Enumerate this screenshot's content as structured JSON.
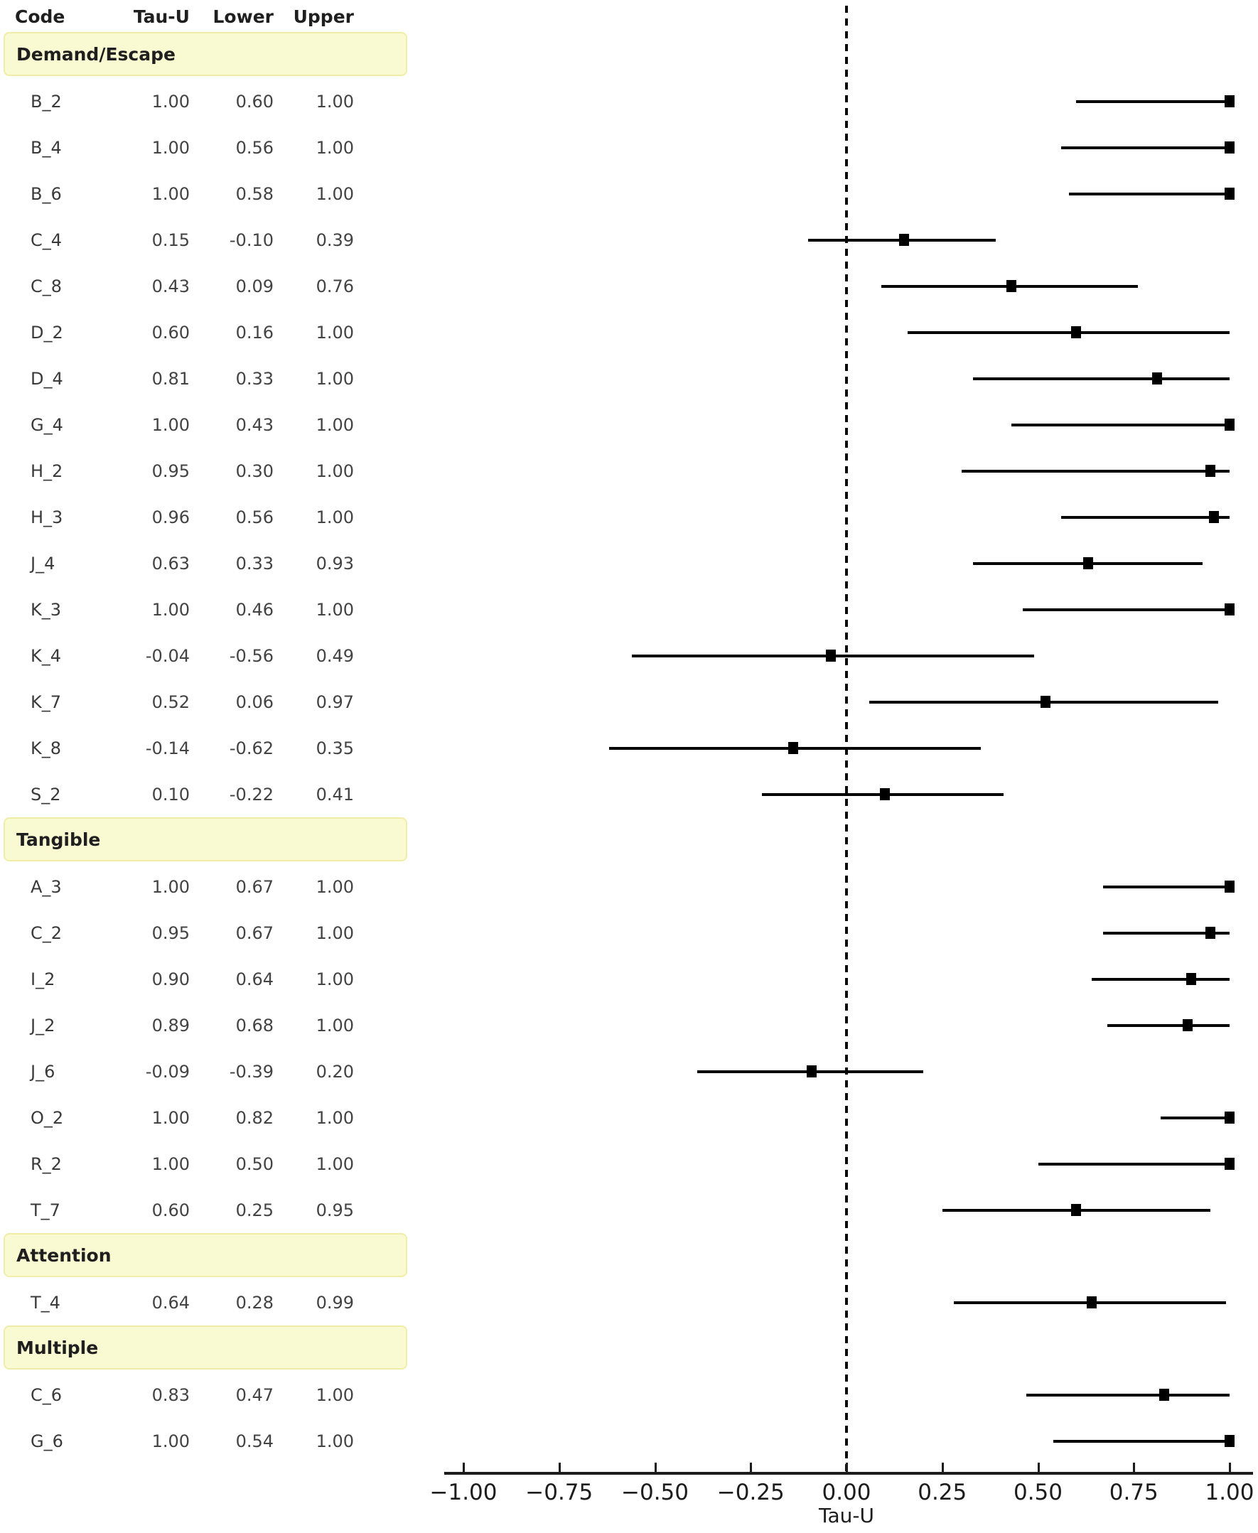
{
  "table": {
    "columns": [
      "Code",
      "Tau-U",
      "Lower",
      "Upper"
    ]
  },
  "axis": {
    "tick_labels": [
      "−1.00",
      "−0.75",
      "−0.50",
      "−0.25",
      "0.00",
      "0.25",
      "0.50",
      "0.75",
      "1.00"
    ]
  },
  "colors": {
    "section_band_bg": "#FAFAD2",
    "section_band_border": "#F0EDA8",
    "marker": "#000000",
    "axis_ink": "#1c1c1c",
    "value_text": "#434343"
  },
  "chart_data": {
    "type": "forest",
    "title": "",
    "xlabel": "Tau-U",
    "xlim": [
      -1.05,
      1.07
    ],
    "x_ticks": [
      -1.0,
      -0.75,
      -0.5,
      -0.25,
      0.0,
      0.25,
      0.5,
      0.75,
      1.0
    ],
    "zero_line": 0.0,
    "grid": false,
    "marker_style": "black-square",
    "groups": [
      {
        "name": "Demand/Escape",
        "rows": [
          {
            "code": "B_2",
            "tau_u": 1.0,
            "lower": 0.6,
            "upper": 1.0
          },
          {
            "code": "B_4",
            "tau_u": 1.0,
            "lower": 0.56,
            "upper": 1.0
          },
          {
            "code": "B_6",
            "tau_u": 1.0,
            "lower": 0.58,
            "upper": 1.0
          },
          {
            "code": "C_4",
            "tau_u": 0.15,
            "lower": -0.1,
            "upper": 0.39
          },
          {
            "code": "C_8",
            "tau_u": 0.43,
            "lower": 0.09,
            "upper": 0.76
          },
          {
            "code": "D_2",
            "tau_u": 0.6,
            "lower": 0.16,
            "upper": 1.0
          },
          {
            "code": "D_4",
            "tau_u": 0.81,
            "lower": 0.33,
            "upper": 1.0
          },
          {
            "code": "G_4",
            "tau_u": 1.0,
            "lower": 0.43,
            "upper": 1.0
          },
          {
            "code": "H_2",
            "tau_u": 0.95,
            "lower": 0.3,
            "upper": 1.0
          },
          {
            "code": "H_3",
            "tau_u": 0.96,
            "lower": 0.56,
            "upper": 1.0
          },
          {
            "code": "J_4",
            "tau_u": 0.63,
            "lower": 0.33,
            "upper": 0.93
          },
          {
            "code": "K_3",
            "tau_u": 1.0,
            "lower": 0.46,
            "upper": 1.0
          },
          {
            "code": "K_4",
            "tau_u": -0.04,
            "lower": -0.56,
            "upper": 0.49
          },
          {
            "code": "K_7",
            "tau_u": 0.52,
            "lower": 0.06,
            "upper": 0.97
          },
          {
            "code": "K_8",
            "tau_u": -0.14,
            "lower": -0.62,
            "upper": 0.35
          },
          {
            "code": "S_2",
            "tau_u": 0.1,
            "lower": -0.22,
            "upper": 0.41
          }
        ]
      },
      {
        "name": "Tangible",
        "rows": [
          {
            "code": "A_3",
            "tau_u": 1.0,
            "lower": 0.67,
            "upper": 1.0
          },
          {
            "code": "C_2",
            "tau_u": 0.95,
            "lower": 0.67,
            "upper": 1.0
          },
          {
            "code": "I_2",
            "tau_u": 0.9,
            "lower": 0.64,
            "upper": 1.0
          },
          {
            "code": "J_2",
            "tau_u": 0.89,
            "lower": 0.68,
            "upper": 1.0
          },
          {
            "code": "J_6",
            "tau_u": -0.09,
            "lower": -0.39,
            "upper": 0.2
          },
          {
            "code": "O_2",
            "tau_u": 1.0,
            "lower": 0.82,
            "upper": 1.0
          },
          {
            "code": "R_2",
            "tau_u": 1.0,
            "lower": 0.5,
            "upper": 1.0
          },
          {
            "code": "T_7",
            "tau_u": 0.6,
            "lower": 0.25,
            "upper": 0.95
          }
        ]
      },
      {
        "name": "Attention",
        "rows": [
          {
            "code": "T_4",
            "tau_u": 0.64,
            "lower": 0.28,
            "upper": 0.99
          }
        ]
      },
      {
        "name": "Multiple",
        "rows": [
          {
            "code": "C_6",
            "tau_u": 0.83,
            "lower": 0.47,
            "upper": 1.0
          },
          {
            "code": "G_6",
            "tau_u": 1.0,
            "lower": 0.54,
            "upper": 1.0
          }
        ]
      }
    ]
  }
}
